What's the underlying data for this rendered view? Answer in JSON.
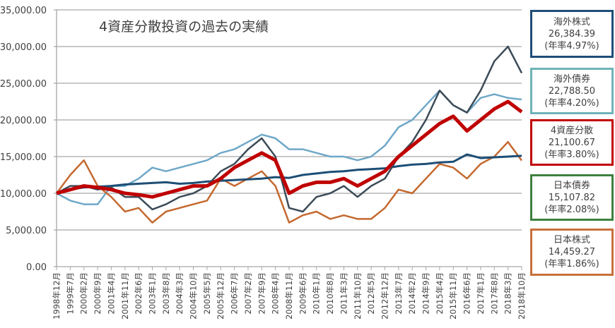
{
  "chart_data": {
    "type": "line",
    "title": "4資産分散投資の過去の実績",
    "xlabel": "",
    "ylabel": "",
    "ylim": [
      0,
      35000
    ],
    "yticks": [
      "0.00",
      "5,000.00",
      "10,000.00",
      "15,000.00",
      "20,000.00",
      "25,000.00",
      "30,000.00",
      "35,000.00"
    ],
    "grid": true,
    "legend_placement": "right",
    "categories": [
      "1998年12月",
      "1999年7月",
      "2000年2月",
      "2000年9月",
      "2001年4月",
      "2001年11月",
      "2002年6月",
      "2003年1月",
      "2003年8月",
      "2004年3月",
      "2004年10月",
      "2005年5月",
      "2005年12月",
      "2006年7月",
      "2007年2月",
      "2007年9月",
      "2008年4月",
      "2008年11月",
      "2009年6月",
      "2010年1月",
      "2010年8月",
      "2011年3月",
      "2011年10月",
      "2012年5月",
      "2012年12月",
      "2013年7月",
      "2014年2月",
      "2014年9月",
      "2015年4月",
      "2015年11月",
      "2016年6月",
      "2017年1月",
      "2017年8月",
      "2018年3月",
      "2018年10月"
    ],
    "series": [
      {
        "name": "海外債券",
        "color": "#6fa8c8",
        "width": 2.5,
        "values": [
          10000,
          9000,
          8500,
          8500,
          11000,
          11000,
          12000,
          13500,
          13000,
          13500,
          14000,
          14500,
          15500,
          16000,
          17000,
          18000,
          17500,
          16000,
          16000,
          15500,
          15000,
          15000,
          14500,
          15000,
          16500,
          19000,
          20000,
          22000,
          24000,
          22000,
          21000,
          23000,
          23500,
          23000,
          22788.5
        ]
      },
      {
        "name": "日本株式",
        "color": "#c5692f",
        "width": 2.5,
        "values": [
          10000,
          12500,
          14500,
          11000,
          9500,
          7500,
          8000,
          6000,
          7500,
          8000,
          8500,
          9000,
          12000,
          11000,
          12000,
          13000,
          11000,
          6000,
          7000,
          7500,
          6500,
          7000,
          6500,
          6500,
          8000,
          10500,
          10000,
          12000,
          14000,
          13500,
          12000,
          14000,
          15000,
          17000,
          14459.27
        ]
      },
      {
        "name": "日本債券",
        "color": "#1d4e75",
        "width": 3,
        "values": [
          10000,
          10500,
          10800,
          10900,
          11000,
          11200,
          11300,
          11400,
          11500,
          11300,
          11400,
          11600,
          11700,
          11800,
          11900,
          12000,
          12200,
          12100,
          12500,
          12700,
          12900,
          13000,
          13200,
          13300,
          13400,
          13700,
          13900,
          14000,
          14200,
          14300,
          15300,
          14800,
          14900,
          15000,
          15107.82
        ]
      },
      {
        "name": "海外株式",
        "color": "#3c4b58",
        "width": 2.5,
        "values": [
          10000,
          11000,
          11000,
          10500,
          10800,
          9500,
          9500,
          7800,
          8500,
          9500,
          10000,
          11000,
          13000,
          14000,
          16000,
          17500,
          15000,
          8000,
          7500,
          9500,
          10000,
          11000,
          9500,
          11000,
          12000,
          15000,
          17000,
          20000,
          24000,
          22000,
          21000,
          24000,
          28000,
          30000,
          26384.39
        ]
      },
      {
        "name": "4資産分散",
        "color": "#c00000",
        "width": 5,
        "values": [
          10000,
          10500,
          11000,
          10800,
          10500,
          10000,
          9800,
          9500,
          10000,
          10500,
          11000,
          11000,
          12000,
          13500,
          14500,
          15500,
          14500,
          10000,
          11000,
          11500,
          11500,
          12000,
          11000,
          12000,
          13000,
          15000,
          16500,
          18000,
          19500,
          20500,
          18500,
          20000,
          21500,
          22500,
          21100.67
        ]
      }
    ]
  },
  "legend": [
    {
      "name": "海外株式",
      "value": "26,384.39",
      "rate": "(年率4.97%)",
      "color": "#1f4e79"
    },
    {
      "name": "海外債券",
      "value": "22,788.50",
      "rate": "(年率4.20%)",
      "color": "#6fb3b8"
    },
    {
      "name": "4資産分散",
      "value": "21,100.67",
      "rate": "(年率3.80%)",
      "color": "#c00000"
    },
    {
      "name": "日本債券",
      "value": "15,107.82",
      "rate": "(年率2.08%)",
      "color": "#3e8040"
    },
    {
      "name": "日本株式",
      "value": "14,459.27",
      "rate": "(年率1.86%)",
      "color": "#c8703a"
    }
  ]
}
